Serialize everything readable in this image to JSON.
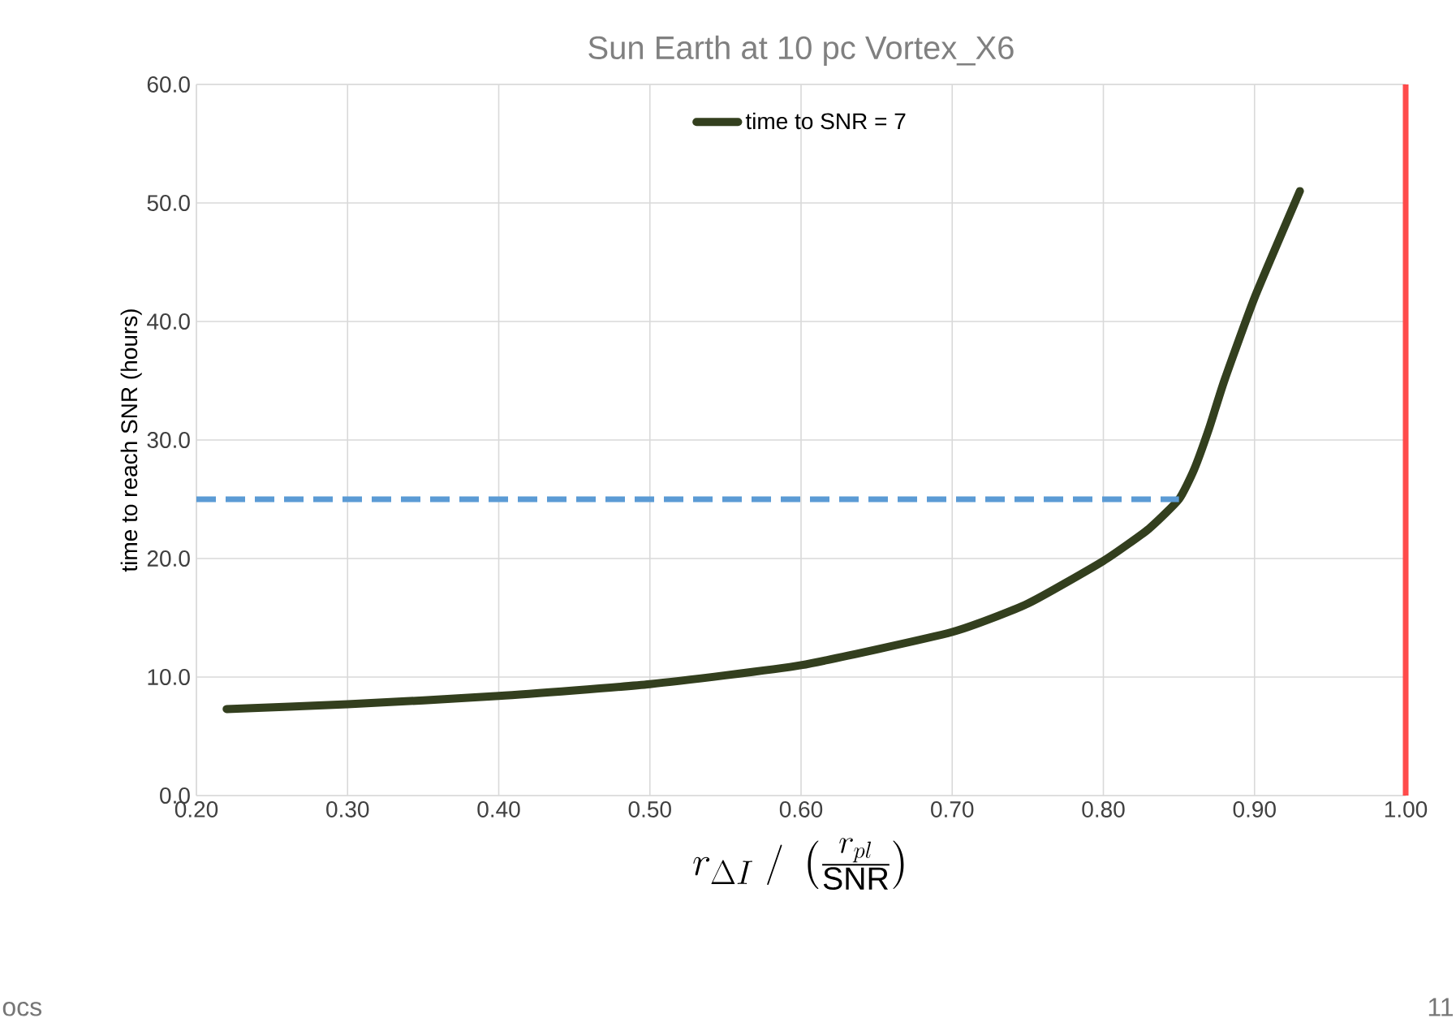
{
  "chart_data": {
    "type": "line",
    "title": "Sun Earth at 10 pc  Vortex_X6",
    "xlabel": "r_{\\Delta I} \\;/\\; \\left( \\frac{r_{pl}}{\\mathrm{SNR}} \\right)",
    "ylabel": "time to reach SNR  (hours)",
    "xlim": [
      0.2,
      1.0
    ],
    "xticks": [
      {
        "value": 0.2,
        "label": "0.20"
      },
      {
        "value": 0.3,
        "label": "0.30"
      },
      {
        "value": 0.4,
        "label": "0.40"
      },
      {
        "value": 0.5,
        "label": "0.50"
      },
      {
        "value": 0.6,
        "label": "0.60"
      },
      {
        "value": 0.7,
        "label": "0.70"
      },
      {
        "value": 0.8,
        "label": "0.80"
      },
      {
        "value": 0.9,
        "label": "0.90"
      },
      {
        "value": 1.0,
        "label": "1.00"
      }
    ],
    "ylim": [
      0,
      60
    ],
    "yticks": [
      {
        "value": 0,
        "label": "0.0"
      },
      {
        "value": 10,
        "label": "10.0"
      },
      {
        "value": 20,
        "label": "20.0"
      },
      {
        "value": 30,
        "label": "30.0"
      },
      {
        "value": 40,
        "label": "40.0"
      },
      {
        "value": 50,
        "label": "50.0"
      },
      {
        "value": 60,
        "label": "60.0"
      }
    ],
    "grid": true,
    "legend": "top",
    "marker": "none",
    "series": [
      {
        "name": "time to SNR = 7",
        "color": "#333f1e",
        "x": [
          0.22,
          0.3,
          0.4,
          0.5,
          0.6,
          0.7,
          0.75,
          0.8,
          0.83,
          0.85,
          0.86,
          0.87,
          0.88,
          0.9,
          0.93
        ],
        "values": [
          7.3,
          7.7,
          8.4,
          9.4,
          11.0,
          13.8,
          16.2,
          19.8,
          22.5,
          25.0,
          27.5,
          31.0,
          35.0,
          42.0,
          51.0
        ]
      },
      {
        "color": "#5b9bd5",
        "line_style": "dashed",
        "x": [
          0.2,
          0.85
        ],
        "values": [
          25,
          25
        ]
      }
    ],
    "ref_lines": [
      {
        "axis": "x",
        "value": 1.0,
        "color": "#ff4b4b"
      }
    ],
    "annotations": [
      "ocs",
      "11"
    ]
  }
}
